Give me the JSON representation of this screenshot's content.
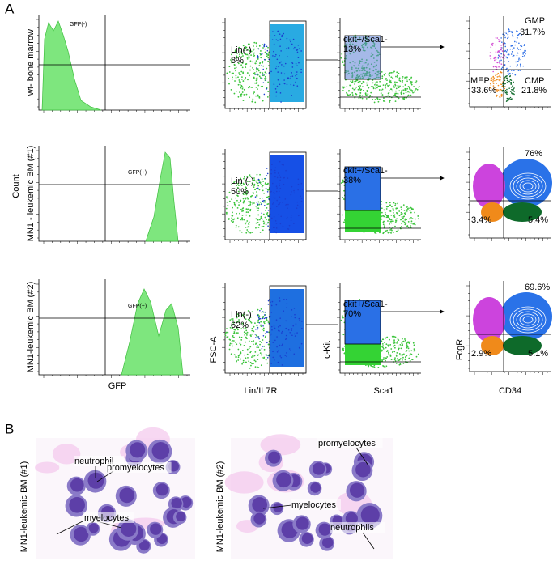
{
  "panel_a": {
    "letter": "A",
    "count_label": "Count",
    "gfp_axis": "GFP",
    "fsc_axis": "FSC-A",
    "lin_axis": "Lin/IL7R",
    "ckit_axis": "c-Kit",
    "sca1_axis": "Sca1",
    "fcgr_axis": "FcgR",
    "cd34_axis": "CD34",
    "rows": [
      {
        "label": "wt- bone marrow",
        "gfp_gate": "GFP(-)",
        "lin_gate": "Lin(-)",
        "lin_pct": "8%",
        "kit_gate": "ckit+/Sca1-",
        "kit_pct": "13%",
        "gmp_name": "GMP",
        "gmp_pct": "31.7%",
        "mep_name": "MEP",
        "mep_pct": "33.6%",
        "cmp_name": "CMP",
        "cmp_pct": "21.8%"
      },
      {
        "label": "MN1 - leukemic BM (#1)",
        "gfp_gate": "GFP(+)",
        "lin_gate": "Lin (-)",
        "lin_pct": "50%",
        "kit_gate": "ckit+/Sca1-",
        "kit_pct": "38%",
        "gmp_pct": "76%",
        "mep_pct": "3.4%",
        "cmp_pct": "5.4%"
      },
      {
        "label": "MN1-leukemic BM (#2)",
        "gfp_gate": "GFP(+)",
        "lin_gate": "Lin(-)",
        "lin_pct": "62%",
        "kit_gate": "ckit+/Sca1-",
        "kit_pct": "70%",
        "gmp_pct": "69.6%",
        "mep_pct": "2.9%",
        "cmp_pct": "5.1%"
      }
    ]
  },
  "panel_b": {
    "letter": "B",
    "samples": [
      {
        "label": "MN1-leukemic BM (#1)",
        "annotations": [
          "neutrophil",
          "promyelocytes",
          "myelocytes"
        ]
      },
      {
        "label": "MN1-leukemic BM (#2)",
        "annotations": [
          "promyelocytes",
          "myelocytes",
          "neutrophils"
        ]
      }
    ]
  }
}
